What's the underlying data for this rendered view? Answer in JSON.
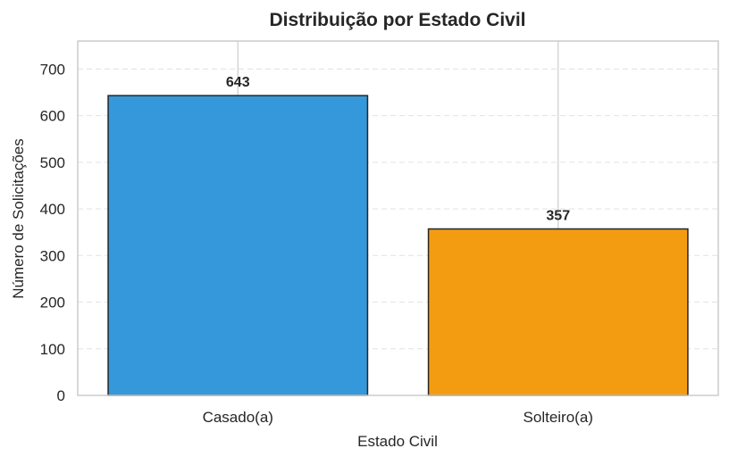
{
  "chart_data": {
    "type": "bar",
    "title": "Distribuição por Estado Civil",
    "xlabel": "Estado Civil",
    "ylabel": "Número de Solicitações",
    "categories": [
      "Casado(a)",
      "Solteiro(a)"
    ],
    "values": [
      643,
      357
    ],
    "data_labels": [
      "643",
      "357"
    ],
    "colors": [
      "#3498db",
      "#f39c12"
    ],
    "edge_color": "#262626",
    "ylim": [
      0,
      760
    ],
    "yticks": [
      0,
      100,
      200,
      300,
      400,
      500,
      600,
      700
    ],
    "grid": true,
    "legend": "none"
  }
}
